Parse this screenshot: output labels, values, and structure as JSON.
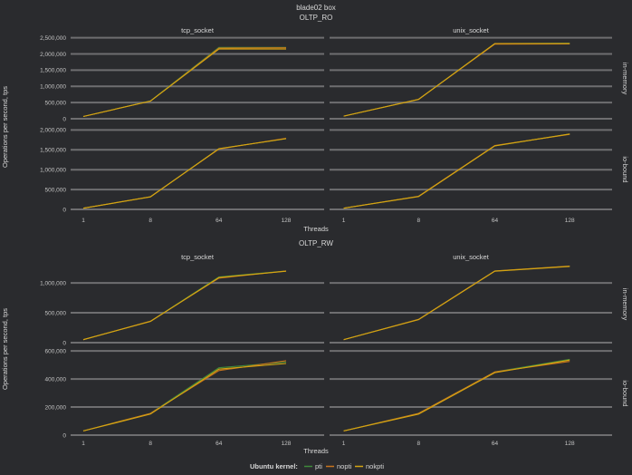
{
  "title": "blade02 box",
  "ylabel": "Operations per second, tps",
  "xlabel": "Threads",
  "legend": {
    "title": "Ubuntu kernel:",
    "entries": [
      "pti",
      "nopti",
      "nokpti"
    ]
  },
  "colors": {
    "pti": "#3f8a3a",
    "nopti": "#c8741c",
    "nokpti": "#d4a512",
    "background": "#2a2b2e",
    "grid": "#6e6e70"
  },
  "chart_data": [
    {
      "type": "line",
      "title": "OLTP_RO",
      "x": [
        "1",
        "8",
        "64",
        "128"
      ],
      "columns": [
        "tcp_socket",
        "unix_socket"
      ],
      "rows": [
        {
          "label": "in-memory",
          "ylim": [
            0,
            2600000
          ],
          "yticks": [
            0,
            500000,
            1000000,
            1500000,
            2000000,
            2500000
          ],
          "ytick_labels": [
            "0",
            "500,000",
            "1,000,000",
            "1,500,000",
            "2,000,000",
            "2,500,000"
          ]
        },
        {
          "label": "io-bound",
          "ylim": [
            0,
            2100000
          ],
          "yticks": [
            0,
            500000,
            1000000,
            1500000,
            2000000
          ],
          "ytick_labels": [
            "0",
            "500,000",
            "1,000,000",
            "1,500,000",
            "2,000,000"
          ]
        }
      ],
      "panels": [
        {
          "row": 0,
          "col": 0,
          "series": {
            "pti": [
              70000,
              550000,
              2200000,
              2200000
            ],
            "nopti": [
              70000,
              545000,
              2180000,
              2190000
            ],
            "nokpti": [
              70000,
              545000,
              2150000,
              2150000
            ]
          }
        },
        {
          "row": 0,
          "col": 1,
          "series": {
            "pti": [
              80000,
              600000,
              2320000,
              2330000
            ],
            "nopti": [
              80000,
              600000,
              2300000,
              2310000
            ],
            "nokpti": [
              80000,
              595000,
              2320000,
              2320000
            ]
          }
        },
        {
          "row": 1,
          "col": 0,
          "series": {
            "pti": [
              30000,
              320000,
              1530000,
              1780000
            ],
            "nopti": [
              30000,
              320000,
              1520000,
              1790000
            ],
            "nokpti": [
              30000,
              315000,
              1530000,
              1780000
            ]
          }
        },
        {
          "row": 1,
          "col": 1,
          "series": {
            "pti": [
              30000,
              330000,
              1600000,
              1900000
            ],
            "nopti": [
              30000,
              330000,
              1610000,
              1890000
            ],
            "nokpti": [
              30000,
              325000,
              1600000,
              1900000
            ]
          }
        }
      ]
    },
    {
      "type": "line",
      "title": "OLTP_RW",
      "x": [
        "1",
        "8",
        "64",
        "128"
      ],
      "columns": [
        "tcp_socket",
        "unix_socket"
      ],
      "rows": [
        {
          "label": "in-memory",
          "ylim": [
            0,
            1350000
          ],
          "yticks": [
            0,
            500000,
            1000000
          ],
          "ytick_labels": [
            "0",
            "500,000",
            "1,000,000"
          ]
        },
        {
          "label": "io-bound",
          "ylim": [
            0,
            620000
          ],
          "yticks": [
            0,
            200000,
            400000,
            600000
          ],
          "ytick_labels": [
            "0",
            "200,000",
            "400,000",
            "600,000"
          ]
        }
      ],
      "panels": [
        {
          "row": 0,
          "col": 0,
          "series": {
            "pti": [
              50000,
              360000,
              1100000,
              1200000
            ],
            "nopti": [
              50000,
              360000,
              1080000,
              1200000
            ],
            "nokpti": [
              50000,
              355000,
              1090000,
              1195000
            ]
          }
        },
        {
          "row": 0,
          "col": 1,
          "series": {
            "pti": [
              50000,
              390000,
              1200000,
              1280000
            ],
            "nopti": [
              50000,
              390000,
              1200000,
              1280000
            ],
            "nokpti": [
              50000,
              385000,
              1195000,
              1275000
            ]
          }
        },
        {
          "row": 1,
          "col": 0,
          "series": {
            "pti": [
              30000,
              155000,
              480000,
              520000
            ],
            "nopti": [
              30000,
              155000,
              460000,
              530000
            ],
            "nokpti": [
              30000,
              150000,
              470000,
              510000
            ]
          }
        },
        {
          "row": 1,
          "col": 1,
          "series": {
            "pti": [
              30000,
              155000,
              450000,
              540000
            ],
            "nopti": [
              30000,
              155000,
              450000,
              525000
            ],
            "nokpti": [
              30000,
              150000,
              445000,
              535000
            ]
          }
        }
      ]
    }
  ]
}
